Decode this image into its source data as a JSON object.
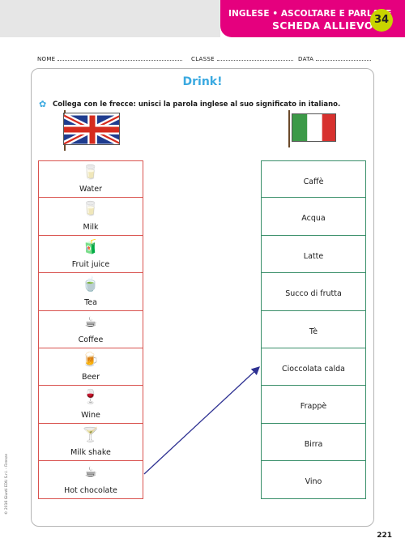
{
  "header": {
    "subject": "INGLESE • ASCOLTARE E PARLARE",
    "sheet": "SCHEDA ALLIEVO",
    "number": "34"
  },
  "info": {
    "name_label": "NOME",
    "class_label": "CLASSE",
    "date_label": "DATA"
  },
  "title": "Drink!",
  "instruction": "Collega con le frecce: unisci la parola inglese al suo significato in italiano.",
  "english_words": [
    {
      "word": "Water",
      "icon": "glass-of-water-icon",
      "glyph": "🥛"
    },
    {
      "word": "Milk",
      "icon": "milk-carton-icon",
      "glyph": "🥛"
    },
    {
      "word": "Fruit juice",
      "icon": "juice-box-icon",
      "glyph": "🧃"
    },
    {
      "word": "Tea",
      "icon": "teacup-icon",
      "glyph": "🍵"
    },
    {
      "word": "Coffee",
      "icon": "coffee-cup-icon",
      "glyph": "☕"
    },
    {
      "word": "Beer",
      "icon": "beer-mug-icon",
      "glyph": "🍺"
    },
    {
      "word": "Wine",
      "icon": "wine-bottle-icon",
      "glyph": "🍷"
    },
    {
      "word": "Milk shake",
      "icon": "milkshake-glass-icon",
      "glyph": "🍸"
    },
    {
      "word": "Hot chocolate",
      "icon": "hot-chocolate-mug-icon",
      "glyph": "☕"
    }
  ],
  "italian_words": [
    "Caffè",
    "Acqua",
    "Latte",
    "Succo di frutta",
    "Tè",
    "Cioccolata calda",
    "Frappè",
    "Birra",
    "Vino"
  ],
  "example_arrow": {
    "from": "Hot chocolate",
    "to": "Cioccolata calda"
  },
  "colors": {
    "magenta": "#e5007e",
    "lime": "#c8d400",
    "blue": "#3aa9e0",
    "red_border": "#d9534f",
    "green_border": "#3a8f6a",
    "arrow": "#2e3192"
  },
  "copyright": "© 2016 Giunti EDU S.r.l. - Firenze",
  "page_number": "221"
}
